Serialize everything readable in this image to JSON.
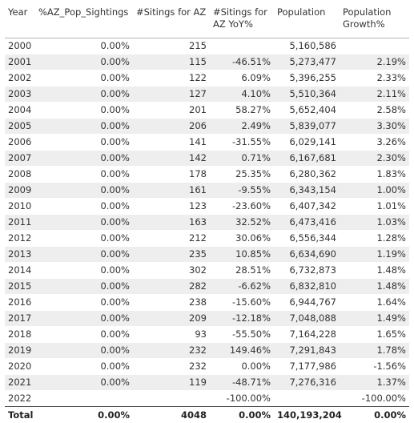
{
  "table": {
    "headers": [
      "Year",
      "%AZ_Pop_Sightings",
      "#Sitings for AZ",
      "#Sitings for AZ YoY%",
      "Population",
      "Population Growth%"
    ],
    "rows": [
      [
        "2000",
        "0.00%",
        "215",
        "",
        "5,160,586",
        ""
      ],
      [
        "2001",
        "0.00%",
        "115",
        "-46.51%",
        "5,273,477",
        "2.19%"
      ],
      [
        "2002",
        "0.00%",
        "122",
        "6.09%",
        "5,396,255",
        "2.33%"
      ],
      [
        "2003",
        "0.00%",
        "127",
        "4.10%",
        "5,510,364",
        "2.11%"
      ],
      [
        "2004",
        "0.00%",
        "201",
        "58.27%",
        "5,652,404",
        "2.58%"
      ],
      [
        "2005",
        "0.00%",
        "206",
        "2.49%",
        "5,839,077",
        "3.30%"
      ],
      [
        "2006",
        "0.00%",
        "141",
        "-31.55%",
        "6,029,141",
        "3.26%"
      ],
      [
        "2007",
        "0.00%",
        "142",
        "0.71%",
        "6,167,681",
        "2.30%"
      ],
      [
        "2008",
        "0.00%",
        "178",
        "25.35%",
        "6,280,362",
        "1.83%"
      ],
      [
        "2009",
        "0.00%",
        "161",
        "-9.55%",
        "6,343,154",
        "1.00%"
      ],
      [
        "2010",
        "0.00%",
        "123",
        "-23.60%",
        "6,407,342",
        "1.01%"
      ],
      [
        "2011",
        "0.00%",
        "163",
        "32.52%",
        "6,473,416",
        "1.03%"
      ],
      [
        "2012",
        "0.00%",
        "212",
        "30.06%",
        "6,556,344",
        "1.28%"
      ],
      [
        "2013",
        "0.00%",
        "235",
        "10.85%",
        "6,634,690",
        "1.19%"
      ],
      [
        "2014",
        "0.00%",
        "302",
        "28.51%",
        "6,732,873",
        "1.48%"
      ],
      [
        "2015",
        "0.00%",
        "282",
        "-6.62%",
        "6,832,810",
        "1.48%"
      ],
      [
        "2016",
        "0.00%",
        "238",
        "-15.60%",
        "6,944,767",
        "1.64%"
      ],
      [
        "2017",
        "0.00%",
        "209",
        "-12.18%",
        "7,048,088",
        "1.49%"
      ],
      [
        "2018",
        "0.00%",
        "93",
        "-55.50%",
        "7,164,228",
        "1.65%"
      ],
      [
        "2019",
        "0.00%",
        "232",
        "149.46%",
        "7,291,843",
        "1.78%"
      ],
      [
        "2020",
        "0.00%",
        "232",
        "0.00%",
        "7,177,986",
        "-1.56%"
      ],
      [
        "2021",
        "0.00%",
        "119",
        "-48.71%",
        "7,276,316",
        "1.37%"
      ],
      [
        "2022",
        "",
        "",
        "-100.00%",
        "",
        "-100.00%"
      ]
    ],
    "total": [
      "Total",
      "0.00%",
      "4048",
      "0.00%",
      "140,193,204",
      "0.00%"
    ]
  }
}
